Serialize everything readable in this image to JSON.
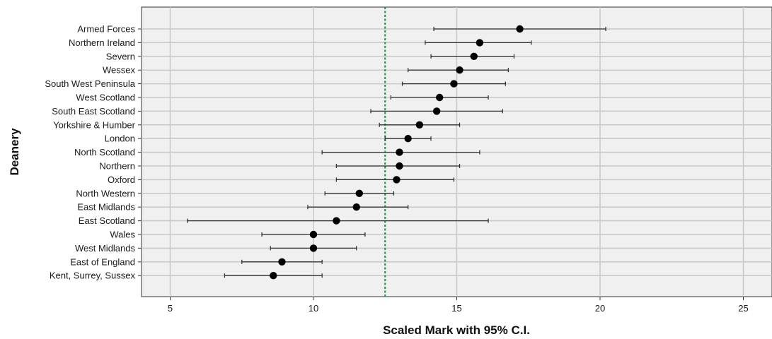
{
  "chart_data": {
    "type": "scatter",
    "title": "",
    "xlabel": "Scaled Mark with 95% C.I.",
    "ylabel": "Deanery",
    "xlim": [
      4,
      26
    ],
    "xticks": [
      5,
      10,
      15,
      20,
      25
    ],
    "reference_line": {
      "x": 12.5,
      "style": "dotted",
      "color": "#1f9a4a"
    },
    "grid": true,
    "legend": "none",
    "colors": {
      "plot_bg": "#f0f0f0",
      "grid": "#c8c8c8",
      "marker": "#000000",
      "error_bar": "#333333"
    },
    "points": [
      {
        "label": "Armed Forces",
        "mean": 17.2,
        "lower": 14.2,
        "upper": 20.2
      },
      {
        "label": "Northern Ireland",
        "mean": 15.8,
        "lower": 13.9,
        "upper": 17.6
      },
      {
        "label": "Severn",
        "mean": 15.6,
        "lower": 14.1,
        "upper": 17.0
      },
      {
        "label": "Wessex",
        "mean": 15.1,
        "lower": 13.3,
        "upper": 16.8
      },
      {
        "label": "South West Peninsula",
        "mean": 14.9,
        "lower": 13.1,
        "upper": 16.7
      },
      {
        "label": "West Scotland",
        "mean": 14.4,
        "lower": 12.7,
        "upper": 16.1
      },
      {
        "label": "South East Scotland",
        "mean": 14.3,
        "lower": 12.0,
        "upper": 16.6
      },
      {
        "label": "Yorkshire & Humber",
        "mean": 13.7,
        "lower": 12.3,
        "upper": 15.1
      },
      {
        "label": "London",
        "mean": 13.3,
        "lower": 12.5,
        "upper": 14.1
      },
      {
        "label": "North Scotland",
        "mean": 13.0,
        "lower": 10.3,
        "upper": 15.8
      },
      {
        "label": "Northern",
        "mean": 13.0,
        "lower": 10.8,
        "upper": 15.1
      },
      {
        "label": "Oxford",
        "mean": 12.9,
        "lower": 10.8,
        "upper": 14.9
      },
      {
        "label": "North Western",
        "mean": 11.6,
        "lower": 10.4,
        "upper": 12.8
      },
      {
        "label": "East Midlands",
        "mean": 11.5,
        "lower": 9.8,
        "upper": 13.3
      },
      {
        "label": "East Scotland",
        "mean": 10.8,
        "lower": 5.6,
        "upper": 16.1
      },
      {
        "label": "Wales",
        "mean": 10.0,
        "lower": 8.2,
        "upper": 11.8
      },
      {
        "label": "West Midlands",
        "mean": 10.0,
        "lower": 8.5,
        "upper": 11.5
      },
      {
        "label": "East of England",
        "mean": 8.9,
        "lower": 7.5,
        "upper": 10.3
      },
      {
        "label": "Kent, Surrey, Sussex",
        "mean": 8.6,
        "lower": 6.9,
        "upper": 10.3
      }
    ]
  }
}
